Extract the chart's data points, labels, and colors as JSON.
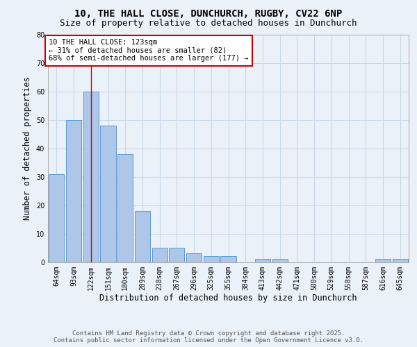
{
  "title_line1": "10, THE HALL CLOSE, DUNCHURCH, RUGBY, CV22 6NP",
  "title_line2": "Size of property relative to detached houses in Dunchurch",
  "bar_values": [
    31,
    50,
    60,
    48,
    38,
    18,
    5,
    5,
    3,
    2,
    2,
    0,
    1,
    1,
    0,
    0,
    0,
    0,
    0,
    1,
    1
  ],
  "x_labels": [
    "64sqm",
    "93sqm",
    "122sqm",
    "151sqm",
    "180sqm",
    "209sqm",
    "238sqm",
    "267sqm",
    "296sqm",
    "325sqm",
    "355sqm",
    "384sqm",
    "413sqm",
    "442sqm",
    "471sqm",
    "500sqm",
    "529sqm",
    "558sqm",
    "587sqm",
    "616sqm",
    "645sqm"
  ],
  "bar_color": "#aec6e8",
  "bar_edge_color": "#5a9ad4",
  "grid_color": "#c8d8e8",
  "background_color": "#eaf1f8",
  "ylabel": "Number of detached properties",
  "xlabel": "Distribution of detached houses by size in Dunchurch",
  "ylim": [
    0,
    80
  ],
  "yticks": [
    0,
    10,
    20,
    30,
    40,
    50,
    60,
    70,
    80
  ],
  "red_line_index": 2,
  "annotation_text": "10 THE HALL CLOSE: 123sqm\n← 31% of detached houses are smaller (82)\n68% of semi-detached houses are larger (177) →",
  "annotation_box_color": "#ffffff",
  "annotation_border_color": "#cc0000",
  "footer_line1": "Contains HM Land Registry data © Crown copyright and database right 2025.",
  "footer_line2": "Contains public sector information licensed under the Open Government Licence v3.0.",
  "title_fontsize": 10,
  "subtitle_fontsize": 9,
  "axis_label_fontsize": 8.5,
  "tick_fontsize": 7,
  "annotation_fontsize": 7.5,
  "footer_fontsize": 6.5
}
